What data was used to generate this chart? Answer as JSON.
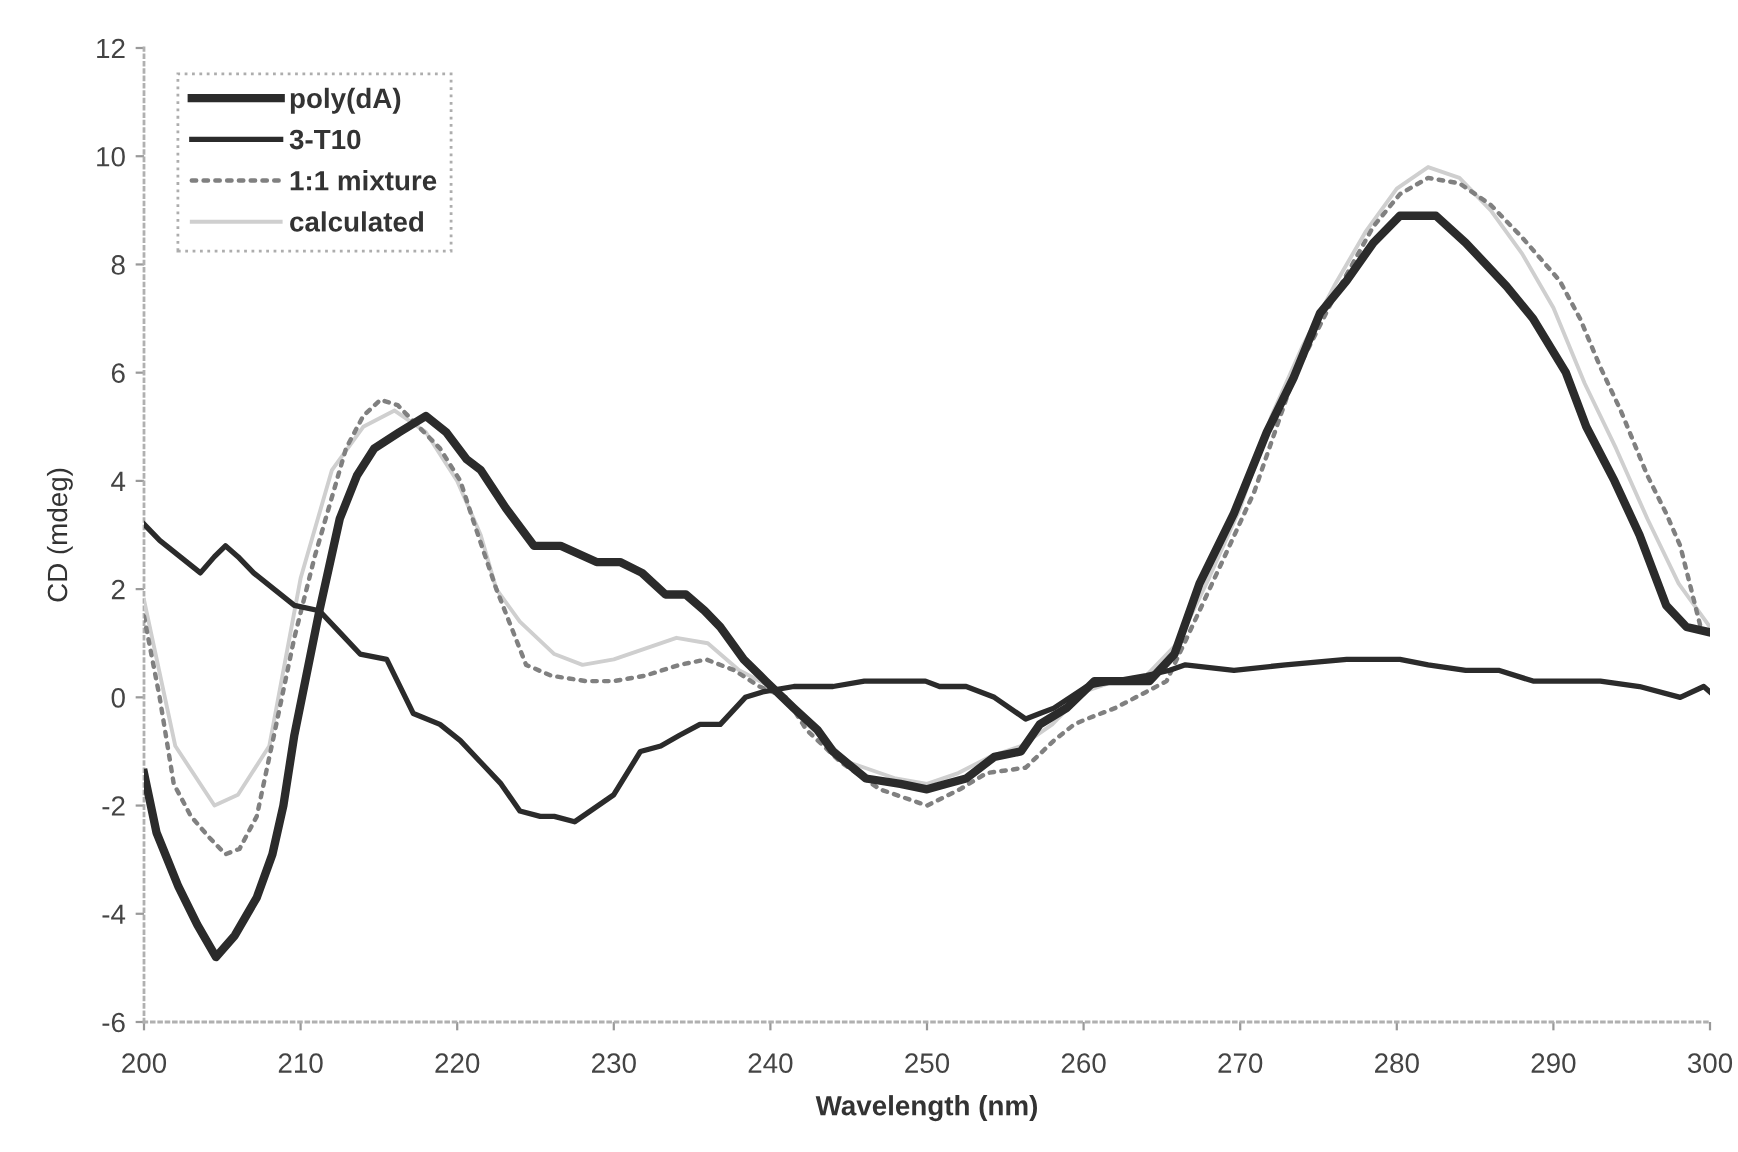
{
  "chart_data": {
    "type": "line",
    "xlabel": "Wavelength (nm)",
    "ylabel": "CD (mdeg)",
    "xlim": [
      200,
      300
    ],
    "ylim": [
      -6,
      12
    ],
    "xticks": [
      200,
      210,
      220,
      230,
      240,
      250,
      260,
      270,
      280,
      290,
      300
    ],
    "yticks": [
      -6,
      -4,
      -2,
      0,
      2,
      4,
      6,
      8,
      10,
      12
    ],
    "legend": "top left",
    "series": [
      {
        "name": "poly(dA)",
        "color": "#2b2b2b",
        "line_style": "solid",
        "x": [
          200,
          200.8,
          201.5,
          202.2,
          203.4,
          204.6,
          205.8,
          207.2,
          208.2,
          208.9,
          209.6,
          211.2,
          212.5,
          213.6,
          214.7,
          216.3,
          218,
          219.3,
          220.6,
          221.5,
          223.1,
          224.9,
          226.6,
          228.9,
          230.4,
          231.8,
          233.3,
          234.6,
          235.8,
          236.8,
          238.3,
          239.7,
          241.5,
          243,
          244,
          246.1,
          248.3,
          250,
          251.2,
          252.5,
          254.3,
          256,
          257.2,
          258.9,
          260.7,
          262.5,
          264.2,
          265.8,
          267.4,
          269.6,
          271.7,
          273.4,
          275.1,
          276.8,
          278.5,
          280.2,
          282.5,
          284.4,
          287,
          288.7,
          290.8,
          292.1,
          293.9,
          295.5,
          297.2,
          298.5,
          300
        ],
        "values": [
          -1.4,
          -2.5,
          -3.0,
          -3.5,
          -4.2,
          -4.8,
          -4.4,
          -3.7,
          -2.9,
          -2.0,
          -0.7,
          1.6,
          3.3,
          4.1,
          4.6,
          4.9,
          5.2,
          4.9,
          4.4,
          4.2,
          3.5,
          2.8,
          2.8,
          2.5,
          2.5,
          2.3,
          1.9,
          1.9,
          1.6,
          1.3,
          0.7,
          0.3,
          -0.2,
          -0.6,
          -1.0,
          -1.5,
          -1.6,
          -1.7,
          -1.6,
          -1.5,
          -1.1,
          -1.0,
          -0.5,
          -0.2,
          0.3,
          0.3,
          0.3,
          0.8,
          2.1,
          3.4,
          4.9,
          5.9,
          7.1,
          7.7,
          8.4,
          8.9,
          8.9,
          8.4,
          7.6,
          7.0,
          6.0,
          5.0,
          4.0,
          3.0,
          1.7,
          1.3,
          1.2
        ]
      },
      {
        "name": "3-T10",
        "color": "#2b2b2b",
        "line_style": "solid",
        "x": [
          200,
          201,
          202.3,
          203.6,
          204.5,
          205.2,
          206,
          207,
          208.3,
          209.6,
          211.2,
          212.5,
          213.8,
          215.5,
          217.2,
          218.9,
          220.2,
          221.5,
          222.8,
          224,
          225.3,
          226.2,
          227.5,
          228.5,
          230,
          231.7,
          233,
          234.2,
          235.5,
          236.8,
          238.4,
          239.5,
          241.5,
          244,
          246,
          248.3,
          249.9,
          250.8,
          252.5,
          254.3,
          256.3,
          257.2,
          258.1,
          260.2,
          262,
          264,
          265.5,
          266.5,
          269.6,
          272.9,
          276.8,
          280.2,
          282,
          284.4,
          286.5,
          288.7,
          291,
          293,
          295.5,
          298.1,
          299.6,
          300
        ],
        "values": [
          3.2,
          2.9,
          2.6,
          2.3,
          2.6,
          2.8,
          2.6,
          2.3,
          2.0,
          1.7,
          1.6,
          1.2,
          0.8,
          0.7,
          -0.3,
          -0.5,
          -0.8,
          -1.2,
          -1.6,
          -2.1,
          -2.2,
          -2.2,
          -2.3,
          -2.1,
          -1.8,
          -1.0,
          -0.9,
          -0.7,
          -0.5,
          -0.5,
          0.0,
          0.1,
          0.2,
          0.2,
          0.3,
          0.3,
          0.3,
          0.2,
          0.2,
          0.0,
          -0.4,
          -0.3,
          -0.2,
          0.2,
          0.3,
          0.4,
          0.5,
          0.6,
          0.5,
          0.6,
          0.7,
          0.7,
          0.6,
          0.5,
          0.5,
          0.3,
          0.3,
          0.3,
          0.2,
          0.0,
          0.2,
          0.1
        ]
      },
      {
        "name": "1:1 mixture",
        "color": "#808080",
        "line_style": "dotted",
        "x": [
          200,
          201,
          201.9,
          203,
          204.2,
          205.2,
          206.1,
          207.2,
          208.3,
          209.6,
          210.9,
          212.1,
          212.9,
          214,
          215.1,
          216.2,
          217.2,
          218.9,
          220.2,
          221.1,
          222.5,
          224.4,
          226,
          228.2,
          230,
          232,
          234.2,
          235.9,
          237.7,
          239.3,
          241,
          242.3,
          244.5,
          247,
          250,
          252.1,
          253.8,
          256.3,
          258.1,
          259.4,
          260.2,
          262,
          264,
          265.3,
          267.4,
          269,
          270.9,
          273.4,
          276,
          278.5,
          280.2,
          282,
          284,
          286,
          288,
          290.4,
          291.7,
          293,
          294.3,
          296,
          297.2,
          298.1,
          299.4,
          300
        ],
        "values": [
          1.5,
          0.0,
          -1.6,
          -2.2,
          -2.6,
          -2.9,
          -2.8,
          -2.2,
          -0.7,
          1.1,
          2.6,
          3.8,
          4.6,
          5.2,
          5.5,
          5.4,
          5.1,
          4.6,
          4.0,
          3.2,
          2.0,
          0.6,
          0.4,
          0.3,
          0.3,
          0.4,
          0.6,
          0.7,
          0.5,
          0.2,
          0.0,
          -0.6,
          -1.2,
          -1.7,
          -2.0,
          -1.7,
          -1.4,
          -1.3,
          -0.8,
          -0.5,
          -0.4,
          -0.2,
          0.1,
          0.3,
          1.6,
          2.6,
          3.8,
          5.9,
          7.4,
          8.7,
          9.3,
          9.6,
          9.5,
          9.1,
          8.5,
          7.7,
          7.0,
          6.1,
          5.3,
          4.1,
          3.4,
          2.8,
          1.3,
          1.2
        ]
      },
      {
        "name": "calculated",
        "color": "#cfcfcf",
        "line_style": "solid",
        "x": [
          200,
          202,
          204.5,
          206,
          208,
          210,
          212,
          214,
          216,
          218,
          220,
          221.5,
          222.5,
          224,
          226.2,
          228,
          230,
          232,
          234,
          236,
          238,
          240,
          242,
          245,
          248,
          250,
          252,
          254,
          256,
          258,
          260,
          262,
          264,
          266,
          268,
          270,
          272,
          274,
          276,
          278,
          280,
          282,
          284,
          286,
          288,
          290,
          292,
          294,
          296,
          298,
          300
        ],
        "values": [
          1.8,
          -0.9,
          -2.0,
          -1.8,
          -0.9,
          2.2,
          4.2,
          5.0,
          5.3,
          4.9,
          4.0,
          3.0,
          2.0,
          1.4,
          0.8,
          0.6,
          0.7,
          0.9,
          1.1,
          1.0,
          0.5,
          0.2,
          -0.4,
          -1.2,
          -1.5,
          -1.6,
          -1.4,
          -1.1,
          -0.9,
          -0.5,
          0.1,
          0.3,
          0.4,
          1.0,
          2.2,
          3.5,
          5.2,
          6.5,
          7.6,
          8.6,
          9.4,
          9.8,
          9.6,
          9.0,
          8.2,
          7.2,
          5.8,
          4.6,
          3.3,
          2.1,
          1.3
        ]
      }
    ]
  }
}
